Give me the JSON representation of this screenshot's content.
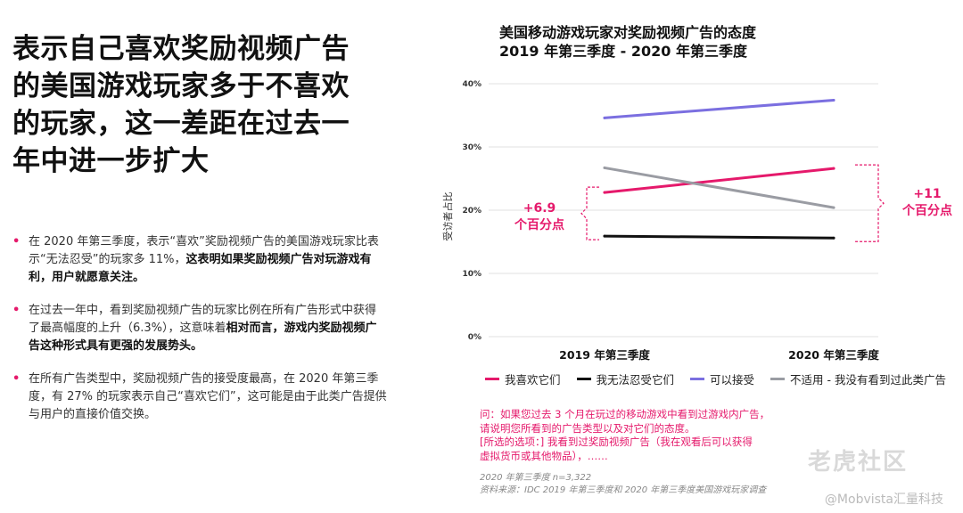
{
  "headline": [
    "表示自己喜欢奖励视频广告",
    "的美国游戏玩家多于不喜欢",
    "的玩家，这一差距在过去一",
    "年中进一步扩大"
  ],
  "bullets": [
    {
      "normal": "在 2020 年第三季度，表示“喜欢”奖励视频广告的美国游戏玩家比表示“无法忍受”的玩家多 11%，",
      "bold": "这表明如果奖励视频广告对玩游戏有利，用户就愿意关注。"
    },
    {
      "normal": "在过去一年中，看到奖励视频广告的玩家比例在所有广告形式中获得了最高幅度的上升（6.3%），这意味着",
      "bold": "相对而言，游戏内奖励视频广告这种形式具有更强的发展势头。"
    },
    {
      "normal": "在所有广告类型中，奖励视频广告的接受度最高，在 2020 年第三季度，有 27% 的玩家表示自己“喜欢它们”，这可能是由于此类广告提供与用户的直接价值交换。",
      "bold": ""
    }
  ],
  "chart_data": {
    "type": "line",
    "title": [
      "美国移动游戏玩家对奖励视频广告的态度",
      "2019 年第三季度 - 2020 年第三季度"
    ],
    "ylabel": "受访者占比",
    "xlabel": "",
    "categories": [
      "2019 年第三季度",
      "2020 年第三季度"
    ],
    "ylim": [
      0,
      40
    ],
    "yticks": [
      "0%",
      "10%",
      "20%",
      "30%",
      "40%"
    ],
    "ytick_values": [
      0,
      10,
      20,
      30,
      40
    ],
    "grid": true,
    "series": [
      {
        "name": "我喜欢它们",
        "color": "#e5196b",
        "values": [
          22.8,
          26.6
        ]
      },
      {
        "name": "我无法忍受它们",
        "color": "#111111",
        "values": [
          15.9,
          15.6
        ]
      },
      {
        "name": "可以接受",
        "color": "#7b6fe0",
        "values": [
          34.6,
          37.4
        ]
      },
      {
        "name": "不适用 - 我没有看到过此类广告",
        "color": "#9a9ca3",
        "values": [
          26.7,
          20.4
        ]
      }
    ],
    "annotations": [
      {
        "text": [
          "+6.9",
          "个百分点"
        ],
        "category": 0
      },
      {
        "text": [
          "+11",
          "个百分点"
        ],
        "category": 1
      }
    ],
    "legend_position": "bottom"
  },
  "note": [
    "问：如果您过去 3 个月在玩过的移动游戏中看到过游戏内广告，",
    "请说明您所看到的广告类型以及对它们的态度。",
    "[所选的选项：] 我看到过奖励视频广告（我在观看后可以获得",
    "虚拟货币或其他物品），……"
  ],
  "source": [
    "2020 年第三季度 n=3,322",
    "资料来源：IDC 2019 年第三季度和 2020 年第三季度美国游戏玩家调查"
  ],
  "watermark": "@Mobvista汇量科技",
  "watermark_logo": "老虎社区"
}
